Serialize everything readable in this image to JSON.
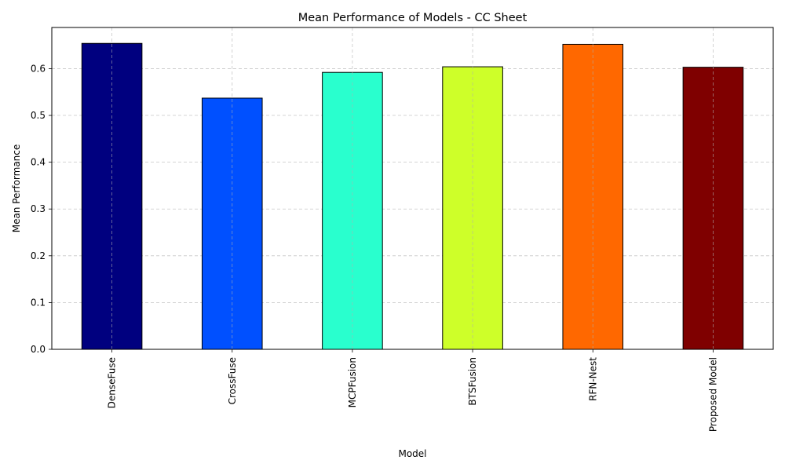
{
  "chart_data": {
    "type": "bar",
    "title": "Mean Performance of Models - CC Sheet",
    "xlabel": "Model",
    "ylabel": "Mean Performance",
    "categories": [
      "DenseFuse",
      "CrossFuse",
      "MCPFusion",
      "BTSFusion",
      "RFN-Nest",
      "Proposed Model"
    ],
    "values": [
      0.654,
      0.537,
      0.592,
      0.604,
      0.652,
      0.603
    ],
    "colors": [
      "#00007f",
      "#0050ff",
      "#29ffce",
      "#ceff29",
      "#ff6800",
      "#7f0000"
    ],
    "ylim": [
      0,
      0.688
    ],
    "yticks": [
      0.0,
      0.1,
      0.2,
      0.3,
      0.4,
      0.5,
      0.6
    ],
    "ytick_labels": [
      "0.0",
      "0.1",
      "0.2",
      "0.3",
      "0.4",
      "0.5",
      "0.6"
    ],
    "grid": true,
    "legend": "none"
  }
}
